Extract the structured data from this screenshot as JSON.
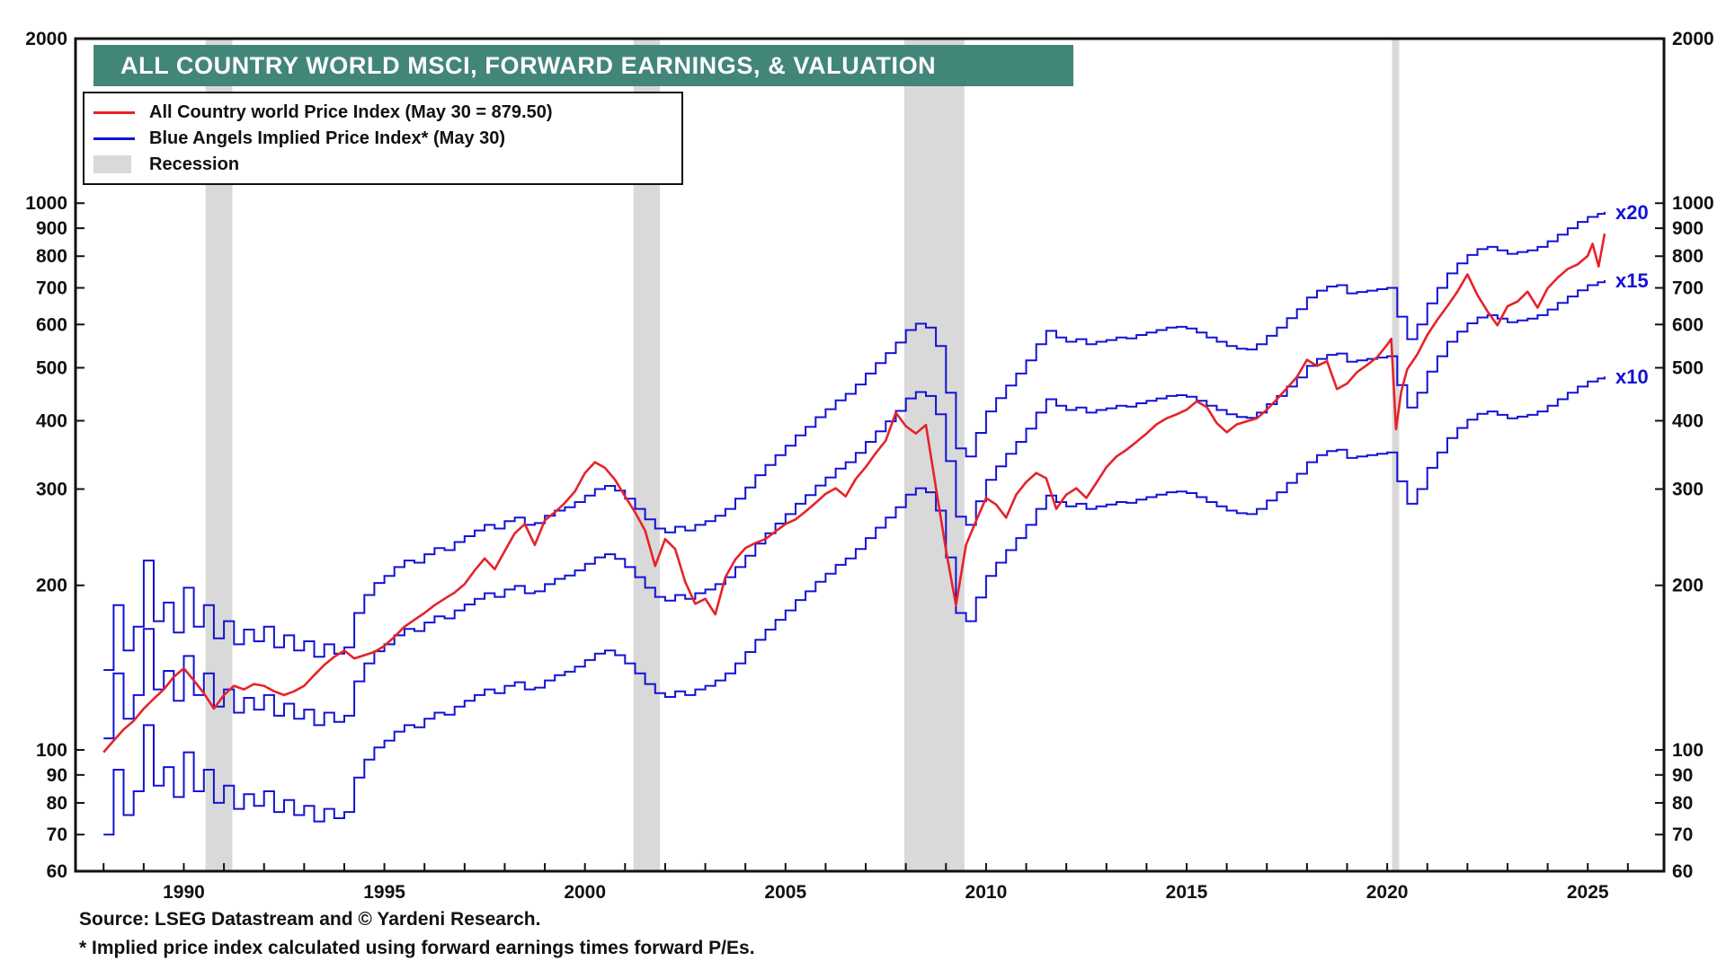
{
  "title": "ALL COUNTRY WORLD MSCI, FORWARD EARNINGS, & VALUATION",
  "legend": {
    "items": [
      {
        "label": "All Country world Price Index (May 30 = 879.50)",
        "color": "#e62329",
        "type": "line"
      },
      {
        "label": "Blue Angels Implied Price Index* (May 30)",
        "color": "#1212d6",
        "type": "line"
      },
      {
        "label": "Recession",
        "color": "#d9d9d9",
        "type": "box"
      }
    ]
  },
  "footer": {
    "source": "Source: LSEG Datastream and © Yardeni Research.",
    "footnote": "* Implied price index calculated using forward earnings times forward P/Es."
  },
  "colors": {
    "banner": "#428579",
    "recession": "#d9d9d9",
    "frame": "#111111",
    "red_line": "#e62329",
    "blue_line": "#1212d6"
  },
  "chart_data": {
    "type": "line",
    "title": "ALL COUNTRY WORLD MSCI, FORWARD EARNINGS, & VALUATION",
    "y_scale": "log",
    "ylim": [
      60,
      2000
    ],
    "xlim": [
      1987.3,
      2026.9
    ],
    "y_ticks": [
      60,
      70,
      80,
      90,
      100,
      200,
      300,
      400,
      500,
      600,
      700,
      800,
      900,
      1000,
      2000
    ],
    "x_ticks": [
      1990,
      1995,
      2000,
      2005,
      2010,
      2015,
      2020,
      2025
    ],
    "x_minor_ticks_every": 1,
    "grid": false,
    "legend_position": "top-left",
    "recessions": [
      [
        1990.54,
        1991.21
      ],
      [
        2001.21,
        2001.87
      ],
      [
        2007.96,
        2009.46
      ],
      [
        2020.12,
        2020.3
      ]
    ],
    "price_index": {
      "name": "All Country world Price Index",
      "last_label": "May 30 = 879.50",
      "color": "#e62329",
      "points": [
        [
          1988.0,
          99
        ],
        [
          1988.25,
          104
        ],
        [
          1988.5,
          109
        ],
        [
          1988.75,
          113
        ],
        [
          1989.0,
          119
        ],
        [
          1989.25,
          124
        ],
        [
          1989.5,
          129
        ],
        [
          1989.75,
          136
        ],
        [
          1990.0,
          141
        ],
        [
          1990.25,
          134
        ],
        [
          1990.5,
          127
        ],
        [
          1990.75,
          119
        ],
        [
          1991.0,
          126
        ],
        [
          1991.25,
          131
        ],
        [
          1991.5,
          129
        ],
        [
          1991.75,
          132
        ],
        [
          1992.0,
          131
        ],
        [
          1992.25,
          128
        ],
        [
          1992.5,
          126
        ],
        [
          1992.75,
          128
        ],
        [
          1993.0,
          131
        ],
        [
          1993.25,
          137
        ],
        [
          1993.5,
          143
        ],
        [
          1993.75,
          148
        ],
        [
          1994.0,
          152
        ],
        [
          1994.25,
          147
        ],
        [
          1994.5,
          149
        ],
        [
          1994.75,
          151
        ],
        [
          1995.0,
          155
        ],
        [
          1995.25,
          161
        ],
        [
          1995.5,
          168
        ],
        [
          1995.75,
          173
        ],
        [
          1996.0,
          178
        ],
        [
          1996.25,
          184
        ],
        [
          1996.5,
          189
        ],
        [
          1996.75,
          194
        ],
        [
          1997.0,
          201
        ],
        [
          1997.25,
          213
        ],
        [
          1997.5,
          224
        ],
        [
          1997.75,
          214
        ],
        [
          1998.0,
          231
        ],
        [
          1998.25,
          249
        ],
        [
          1998.5,
          259
        ],
        [
          1998.75,
          237
        ],
        [
          1999.0,
          263
        ],
        [
          1999.25,
          272
        ],
        [
          1999.5,
          283
        ],
        [
          1999.75,
          297
        ],
        [
          2000.0,
          321
        ],
        [
          2000.25,
          336
        ],
        [
          2000.5,
          328
        ],
        [
          2000.75,
          312
        ],
        [
          2001.0,
          291
        ],
        [
          2001.25,
          272
        ],
        [
          2001.5,
          252
        ],
        [
          2001.75,
          217
        ],
        [
          2002.0,
          243
        ],
        [
          2002.25,
          233
        ],
        [
          2002.5,
          203
        ],
        [
          2002.75,
          185
        ],
        [
          2003.0,
          189
        ],
        [
          2003.25,
          177
        ],
        [
          2003.5,
          207
        ],
        [
          2003.75,
          223
        ],
        [
          2004.0,
          234
        ],
        [
          2004.25,
          239
        ],
        [
          2004.5,
          243
        ],
        [
          2004.75,
          251
        ],
        [
          2005.0,
          259
        ],
        [
          2005.25,
          264
        ],
        [
          2005.5,
          273
        ],
        [
          2005.75,
          283
        ],
        [
          2006.0,
          294
        ],
        [
          2006.25,
          301
        ],
        [
          2006.5,
          291
        ],
        [
          2006.75,
          313
        ],
        [
          2007.0,
          329
        ],
        [
          2007.25,
          349
        ],
        [
          2007.5,
          368
        ],
        [
          2007.75,
          414
        ],
        [
          2008.0,
          391
        ],
        [
          2008.25,
          379
        ],
        [
          2008.5,
          393
        ],
        [
          2008.75,
          302
        ],
        [
          2009.0,
          232
        ],
        [
          2009.25,
          184
        ],
        [
          2009.5,
          237
        ],
        [
          2009.75,
          262
        ],
        [
          2010.0,
          289
        ],
        [
          2010.25,
          281
        ],
        [
          2010.5,
          266
        ],
        [
          2010.75,
          293
        ],
        [
          2011.0,
          309
        ],
        [
          2011.25,
          321
        ],
        [
          2011.5,
          314
        ],
        [
          2011.75,
          276
        ],
        [
          2012.0,
          293
        ],
        [
          2012.25,
          301
        ],
        [
          2012.5,
          289
        ],
        [
          2012.75,
          308
        ],
        [
          2013.0,
          329
        ],
        [
          2013.25,
          344
        ],
        [
          2013.5,
          354
        ],
        [
          2013.75,
          366
        ],
        [
          2014.0,
          379
        ],
        [
          2014.25,
          394
        ],
        [
          2014.5,
          404
        ],
        [
          2014.75,
          411
        ],
        [
          2015.0,
          419
        ],
        [
          2015.25,
          434
        ],
        [
          2015.5,
          424
        ],
        [
          2015.75,
          396
        ],
        [
          2016.0,
          381
        ],
        [
          2016.25,
          394
        ],
        [
          2016.5,
          399
        ],
        [
          2016.75,
          404
        ],
        [
          2017.0,
          419
        ],
        [
          2017.25,
          438
        ],
        [
          2017.5,
          459
        ],
        [
          2017.75,
          481
        ],
        [
          2018.0,
          517
        ],
        [
          2018.25,
          504
        ],
        [
          2018.5,
          514
        ],
        [
          2018.75,
          457
        ],
        [
          2019.0,
          468
        ],
        [
          2019.25,
          491
        ],
        [
          2019.5,
          506
        ],
        [
          2019.75,
          523
        ],
        [
          2020.0,
          551
        ],
        [
          2020.1,
          565
        ],
        [
          2020.22,
          386
        ],
        [
          2020.35,
          452
        ],
        [
          2020.5,
          497
        ],
        [
          2020.75,
          529
        ],
        [
          2021.0,
          574
        ],
        [
          2021.25,
          612
        ],
        [
          2021.5,
          648
        ],
        [
          2021.75,
          689
        ],
        [
          2022.0,
          741
        ],
        [
          2022.25,
          679
        ],
        [
          2022.5,
          634
        ],
        [
          2022.75,
          598
        ],
        [
          2023.0,
          648
        ],
        [
          2023.25,
          661
        ],
        [
          2023.5,
          689
        ],
        [
          2023.75,
          644
        ],
        [
          2024.0,
          699
        ],
        [
          2024.25,
          731
        ],
        [
          2024.5,
          758
        ],
        [
          2024.75,
          773
        ],
        [
          2025.0,
          801
        ],
        [
          2025.12,
          843
        ],
        [
          2025.27,
          766
        ],
        [
          2025.42,
          879.5
        ]
      ]
    },
    "blue_angels": {
      "name": "Blue Angels Implied Price Index (forward earnings × forward P/E)",
      "color": "#1212d6",
      "multiples": [
        20,
        15,
        10
      ],
      "labels": [
        "x20",
        "x15",
        "x10"
      ],
      "forward_earnings": [
        [
          1988.0,
          7.0
        ],
        [
          1988.25,
          9.2
        ],
        [
          1988.5,
          7.6
        ],
        [
          1988.75,
          8.4
        ],
        [
          1989.0,
          11.1
        ],
        [
          1989.25,
          8.6
        ],
        [
          1989.5,
          9.3
        ],
        [
          1989.75,
          8.2
        ],
        [
          1990.0,
          9.9
        ],
        [
          1990.25,
          8.4
        ],
        [
          1990.5,
          9.2
        ],
        [
          1990.75,
          8.0
        ],
        [
          1991.0,
          8.6
        ],
        [
          1991.25,
          7.8
        ],
        [
          1991.5,
          8.3
        ],
        [
          1991.75,
          7.9
        ],
        [
          1992.0,
          8.4
        ],
        [
          1992.25,
          7.7
        ],
        [
          1992.5,
          8.1
        ],
        [
          1992.75,
          7.6
        ],
        [
          1993.0,
          7.9
        ],
        [
          1993.25,
          7.4
        ],
        [
          1993.5,
          7.8
        ],
        [
          1993.75,
          7.5
        ],
        [
          1994.0,
          7.7
        ],
        [
          1994.25,
          8.9
        ],
        [
          1994.5,
          9.6
        ],
        [
          1994.75,
          10.1
        ],
        [
          1995.0,
          10.4
        ],
        [
          1995.25,
          10.8
        ],
        [
          1995.5,
          11.1
        ],
        [
          1995.75,
          11.0
        ],
        [
          1996.0,
          11.4
        ],
        [
          1996.25,
          11.7
        ],
        [
          1996.5,
          11.6
        ],
        [
          1996.75,
          12.0
        ],
        [
          1997.0,
          12.3
        ],
        [
          1997.25,
          12.6
        ],
        [
          1997.5,
          12.9
        ],
        [
          1997.75,
          12.7
        ],
        [
          1998.0,
          13.1
        ],
        [
          1998.25,
          13.3
        ],
        [
          1998.5,
          12.9
        ],
        [
          1998.75,
          13.0
        ],
        [
          1999.0,
          13.4
        ],
        [
          1999.25,
          13.7
        ],
        [
          1999.5,
          13.9
        ],
        [
          1999.75,
          14.2
        ],
        [
          2000.0,
          14.6
        ],
        [
          2000.25,
          15.0
        ],
        [
          2000.5,
          15.2
        ],
        [
          2000.75,
          14.9
        ],
        [
          2001.0,
          14.4
        ],
        [
          2001.25,
          13.8
        ],
        [
          2001.5,
          13.2
        ],
        [
          2001.75,
          12.7
        ],
        [
          2002.0,
          12.5
        ],
        [
          2002.25,
          12.8
        ],
        [
          2002.5,
          12.6
        ],
        [
          2002.75,
          12.9
        ],
        [
          2003.0,
          13.1
        ],
        [
          2003.25,
          13.4
        ],
        [
          2003.5,
          13.8
        ],
        [
          2003.75,
          14.4
        ],
        [
          2004.0,
          15.1
        ],
        [
          2004.25,
          15.9
        ],
        [
          2004.5,
          16.6
        ],
        [
          2004.75,
          17.3
        ],
        [
          2005.0,
          18.0
        ],
        [
          2005.25,
          18.8
        ],
        [
          2005.5,
          19.5
        ],
        [
          2005.75,
          20.3
        ],
        [
          2006.0,
          21.0
        ],
        [
          2006.25,
          21.8
        ],
        [
          2006.5,
          22.4
        ],
        [
          2006.75,
          23.3
        ],
        [
          2007.0,
          24.4
        ],
        [
          2007.25,
          25.5
        ],
        [
          2007.5,
          26.6
        ],
        [
          2007.75,
          27.8
        ],
        [
          2008.0,
          29.3
        ],
        [
          2008.25,
          30.1
        ],
        [
          2008.5,
          29.6
        ],
        [
          2008.75,
          27.4
        ],
        [
          2009.0,
          22.5
        ],
        [
          2009.25,
          17.8
        ],
        [
          2009.5,
          17.2
        ],
        [
          2009.75,
          19.0
        ],
        [
          2010.0,
          20.8
        ],
        [
          2010.25,
          22.0
        ],
        [
          2010.5,
          23.2
        ],
        [
          2010.75,
          24.4
        ],
        [
          2011.0,
          25.8
        ],
        [
          2011.25,
          27.6
        ],
        [
          2011.5,
          29.2
        ],
        [
          2011.75,
          28.4
        ],
        [
          2012.0,
          27.9
        ],
        [
          2012.25,
          28.2
        ],
        [
          2012.5,
          27.6
        ],
        [
          2012.75,
          27.9
        ],
        [
          2013.0,
          28.1
        ],
        [
          2013.25,
          28.4
        ],
        [
          2013.5,
          28.3
        ],
        [
          2013.75,
          28.7
        ],
        [
          2014.0,
          29.0
        ],
        [
          2014.25,
          29.3
        ],
        [
          2014.5,
          29.6
        ],
        [
          2014.75,
          29.7
        ],
        [
          2015.0,
          29.5
        ],
        [
          2015.25,
          29.0
        ],
        [
          2015.5,
          28.4
        ],
        [
          2015.75,
          27.9
        ],
        [
          2016.0,
          27.4
        ],
        [
          2016.25,
          27.1
        ],
        [
          2016.5,
          27.0
        ],
        [
          2016.75,
          27.6
        ],
        [
          2017.0,
          28.6
        ],
        [
          2017.25,
          29.6
        ],
        [
          2017.5,
          30.8
        ],
        [
          2017.75,
          32.0
        ],
        [
          2018.0,
          33.6
        ],
        [
          2018.25,
          34.6
        ],
        [
          2018.5,
          35.2
        ],
        [
          2018.75,
          35.4
        ],
        [
          2019.0,
          34.2
        ],
        [
          2019.25,
          34.4
        ],
        [
          2019.5,
          34.6
        ],
        [
          2019.75,
          34.8
        ],
        [
          2020.0,
          35.0
        ],
        [
          2020.25,
          31.0
        ],
        [
          2020.5,
          28.2
        ],
        [
          2020.75,
          30.0
        ],
        [
          2021.0,
          32.8
        ],
        [
          2021.25,
          35.0
        ],
        [
          2021.5,
          37.2
        ],
        [
          2021.75,
          38.8
        ],
        [
          2022.0,
          40.2
        ],
        [
          2022.25,
          41.2
        ],
        [
          2022.5,
          41.6
        ],
        [
          2022.75,
          41.0
        ],
        [
          2023.0,
          40.4
        ],
        [
          2023.25,
          40.7
        ],
        [
          2023.5,
          41.0
        ],
        [
          2023.75,
          41.6
        ],
        [
          2024.0,
          42.6
        ],
        [
          2024.25,
          43.8
        ],
        [
          2024.5,
          45.0
        ],
        [
          2024.75,
          46.2
        ],
        [
          2025.0,
          47.2
        ],
        [
          2025.25,
          47.8
        ],
        [
          2025.42,
          48.2
        ]
      ]
    }
  }
}
